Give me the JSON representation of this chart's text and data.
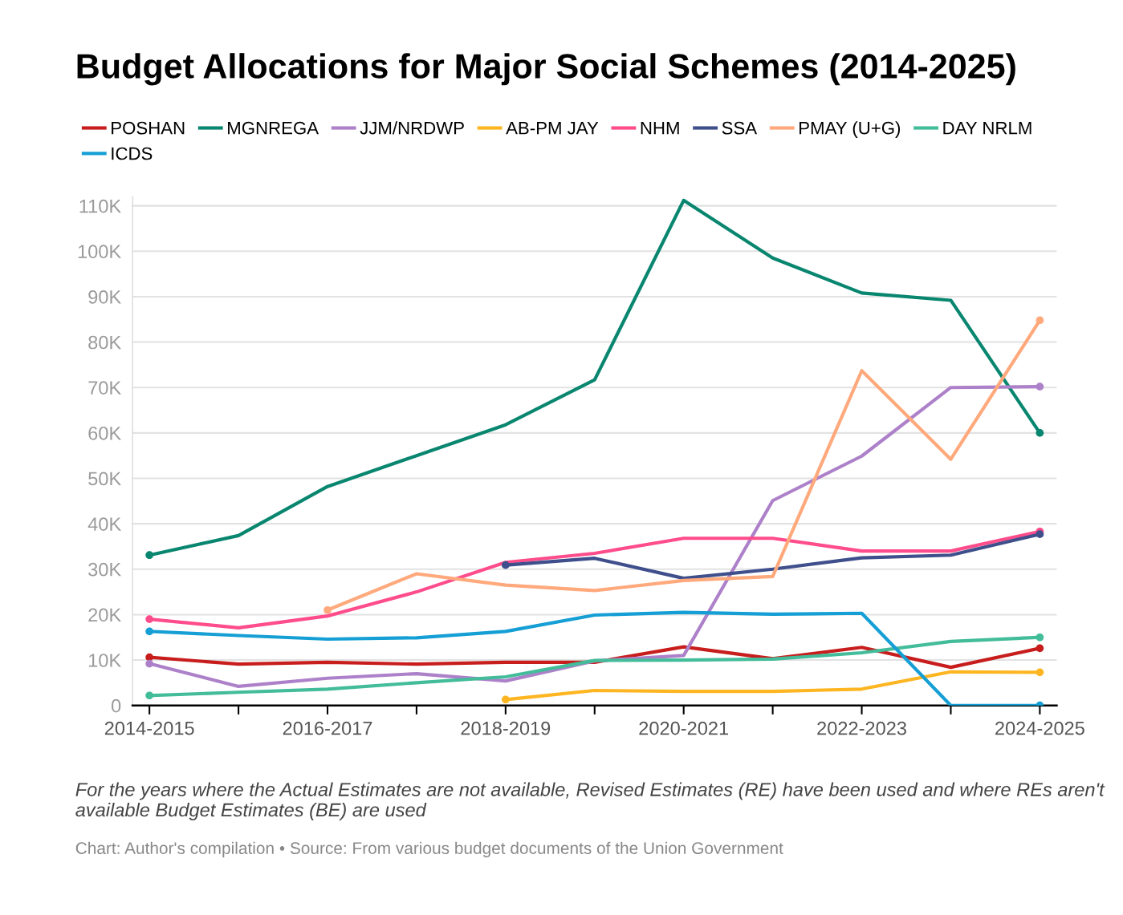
{
  "chart_data": {
    "type": "line",
    "title": "Budget Allocations for Major Social Schemes (2014-2025)",
    "categories": [
      "2014-2015",
      null,
      "2016-2017",
      null,
      "2018-2019",
      null,
      "2020-2021",
      null,
      "2022-2023",
      null,
      "2024-2025"
    ],
    "series": [
      {
        "name": "POSHAN",
        "color": "#c71e1d",
        "values": [
          10600,
          9100,
          9500,
          9100,
          9500,
          9500,
          12900,
          10300,
          12800,
          8400,
          12600
        ]
      },
      {
        "name": "MGNREGA",
        "color": "#09866f",
        "values": [
          33100,
          37400,
          48200,
          55000,
          61800,
          71700,
          111200,
          98500,
          90800,
          89200,
          60000
        ]
      },
      {
        "name": "JJM/NRDWP",
        "color": "#ad81c9",
        "values": [
          9200,
          4200,
          6000,
          7000,
          5400,
          9800,
          11000,
          45100,
          54900,
          70000,
          70200
        ]
      },
      {
        "name": "AB-PM JAY",
        "color": "#fdb521",
        "values": [
          null,
          null,
          null,
          null,
          1300,
          3300,
          3100,
          3100,
          3600,
          7400,
          7300
        ]
      },
      {
        "name": "NHM",
        "color": "#ff4c8b",
        "values": [
          19000,
          17100,
          19700,
          25000,
          31500,
          33500,
          36800,
          36800,
          34000,
          34000,
          38300
        ]
      },
      {
        "name": "SSA",
        "color": "#3f4f8c",
        "values": [
          null,
          null,
          null,
          null,
          30900,
          32400,
          28000,
          30000,
          32500,
          33100,
          37700
        ]
      },
      {
        "name": "PMAY (U+G)",
        "color": "#ffa97c",
        "values": [
          null,
          null,
          21000,
          29000,
          26500,
          25300,
          27500,
          28400,
          73700,
          54200,
          84800
        ]
      },
      {
        "name": "DAY NRLM",
        "color": "#43bc9a",
        "values": [
          2200,
          2900,
          3600,
          5000,
          6300,
          9900,
          10000,
          10200,
          11600,
          14100,
          15000
        ]
      },
      {
        "name": "ICDS",
        "color": "#159fd5",
        "values": [
          16300,
          15400,
          14600,
          14900,
          16300,
          19900,
          20500,
          20100,
          20300,
          0,
          0
        ]
      }
    ],
    "ylim": [
      0,
      112000
    ],
    "yticks": [
      0,
      {
        "value": 10000,
        "label": "10K"
      },
      {
        "value": 20000,
        "label": "20K"
      },
      {
        "value": 30000,
        "label": "30K"
      },
      {
        "value": 40000,
        "label": "40K"
      },
      {
        "value": 50000,
        "label": "50K"
      },
      {
        "value": 60000,
        "label": "60K"
      },
      {
        "value": 70000,
        "label": "70K"
      },
      {
        "value": 80000,
        "label": "80K"
      },
      {
        "value": 90000,
        "label": "90K"
      },
      {
        "value": 100000,
        "label": "100K"
      },
      {
        "value": 110000,
        "label": "110K"
      }
    ],
    "grid": "y",
    "legend": "top",
    "line_style": "solid",
    "annotations": [
      "For the years where the Actual Estimates are not available, Revised Estimates (RE) have been used and where REs aren't available Budget Estimates (BE) are used",
      "Chart: Author's compilation • Source: From various budget documents of the Union Government"
    ]
  }
}
